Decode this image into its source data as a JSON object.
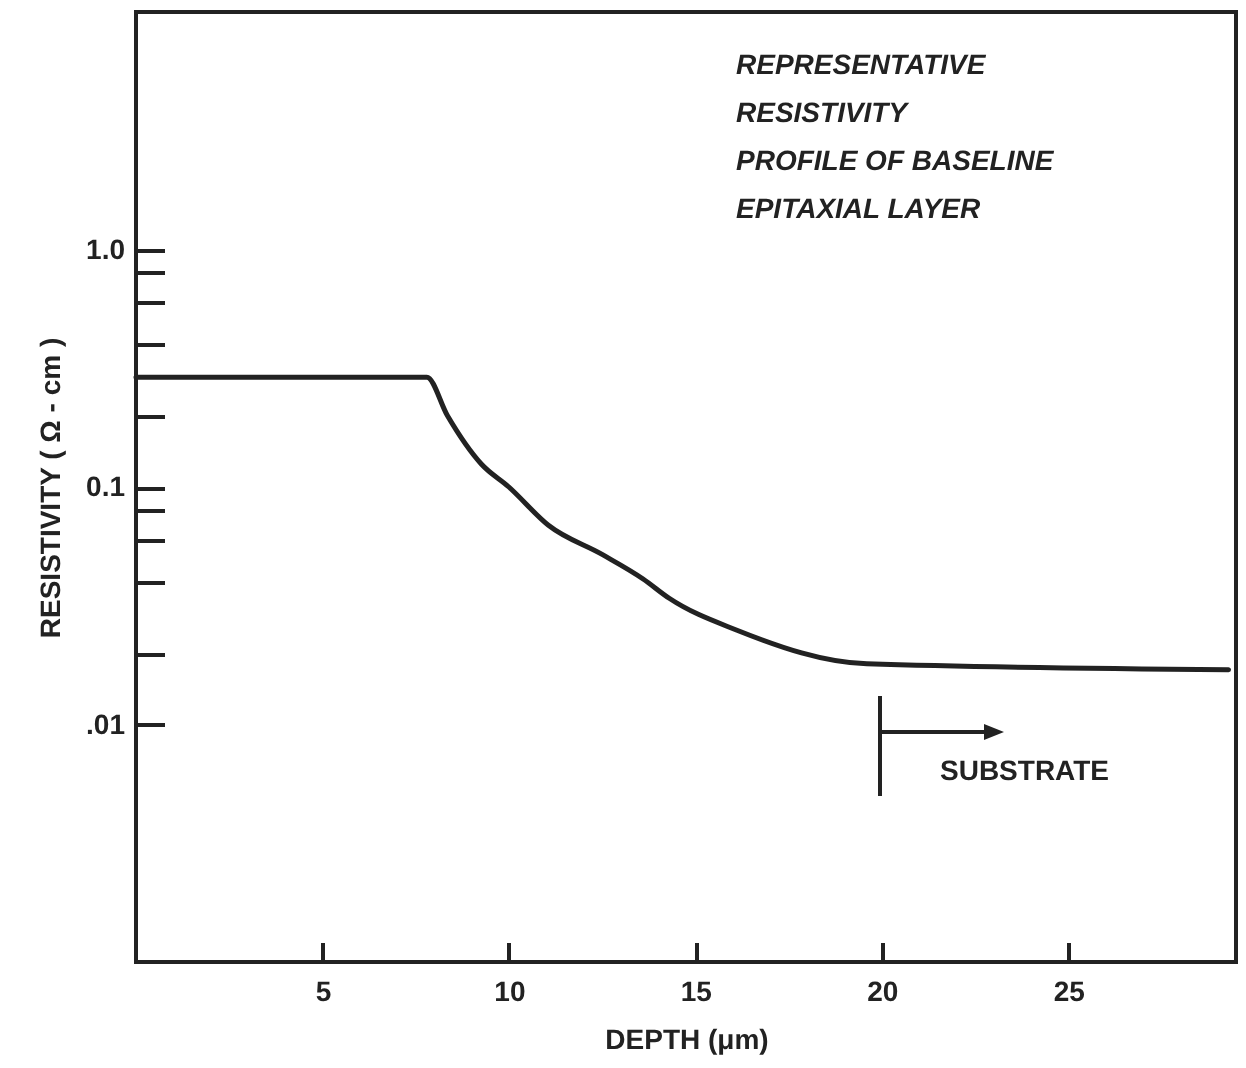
{
  "chart_data": {
    "type": "line",
    "title": "REPRESENTATIVE\nRESISTIVITY\nPROFILE OF BASELINE\nEPITAXIAL LAYER",
    "xlabel": "DEPTH (μm)",
    "ylabel": "RESISTIVITY ( Ω - cm )",
    "x": [
      0,
      7.8,
      8.35,
      9.26,
      10,
      11.06,
      12.5,
      13.6,
      14.3,
      16.1,
      19.6,
      29.3
    ],
    "series": [
      {
        "color": "#222222",
        "values": [
          0.29,
          0.29,
          0.2,
          0.125,
          0.1,
          0.069,
          0.052,
          0.041,
          0.034,
          0.025,
          0.018,
          0.017
        ]
      }
    ],
    "log": true,
    "xlim": [
      0,
      29.5
    ],
    "xticks": [
      5,
      10,
      15,
      20,
      25
    ],
    "ylim": [
      0.001,
      10
    ],
    "yticks": [
      {
        "value": 1,
        "label": "1.0"
      },
      {
        "value": 0.8,
        "label": null
      },
      {
        "value": 0.6,
        "label": null
      },
      {
        "value": 0.4,
        "label": null
      },
      {
        "value": 0.2,
        "label": null
      },
      {
        "value": 0.1,
        "label": "0.1"
      },
      {
        "value": 0.08,
        "label": null
      },
      {
        "value": 0.06,
        "label": null
      },
      {
        "value": 0.04,
        "label": null
      },
      {
        "value": 0.02,
        "label": null
      },
      {
        "value": 0.01,
        "label": ".01"
      }
    ],
    "annotations": [
      "SUBSTRATE"
    ],
    "grid": false,
    "marker": "none",
    "line_style": "solid"
  }
}
